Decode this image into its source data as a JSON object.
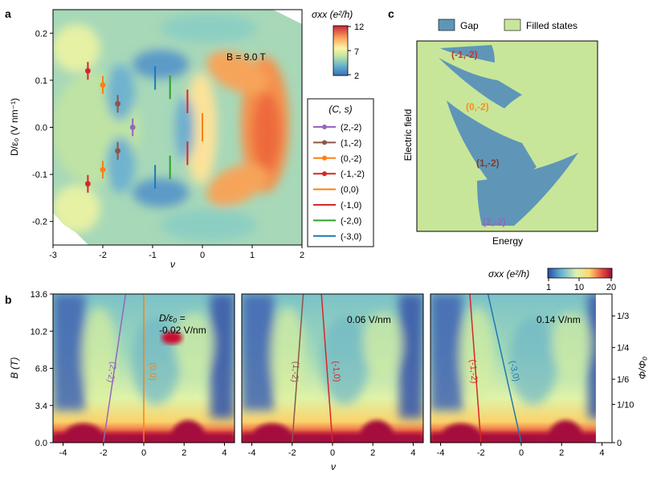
{
  "panels": {
    "a": "a",
    "b": "b",
    "c": "c"
  },
  "colors": {
    "gap": "#5f96b8",
    "filled": "#c8e69a",
    "s_2_m2": "#9467bd",
    "s_1_m2": "#8c564b",
    "s_0_m2": "#ff7f0e",
    "s_m1_m2": "#d62728",
    "s_0_0": "#ff7f0e",
    "s_m1_0": "#d62728",
    "s_m2_0": "#2ca02c",
    "s_m3_0": "#1f77b4"
  },
  "panel_a": {
    "annotation": "B = 9.0 T",
    "colorbar_label": "σxx (e²/h)",
    "colorbar_ticks": [
      "12",
      "7",
      "2"
    ],
    "legend_title": "(C, s)",
    "legend": [
      {
        "label": "(2,-2)",
        "marker": true,
        "color": "#9467bd"
      },
      {
        "label": "(1,-2)",
        "marker": true,
        "color": "#8c564b"
      },
      {
        "label": "(0,-2)",
        "marker": true,
        "color": "#ff7f0e"
      },
      {
        "label": "(-1,-2)",
        "marker": true,
        "color": "#d62728"
      },
      {
        "label": "(0,0)",
        "marker": false,
        "color": "#ff7f0e"
      },
      {
        "label": "(-1,0)",
        "marker": false,
        "color": "#d62728"
      },
      {
        "label": "(-2,0)",
        "marker": false,
        "color": "#2ca02c"
      },
      {
        "label": "(-3,0)",
        "marker": false,
        "color": "#1f77b4"
      }
    ]
  },
  "panel_c": {
    "legend_gap": "Gap",
    "legend_filled": "Filled states",
    "xlabel": "Energy",
    "ylabel": "Electric field",
    "labels": [
      {
        "text": "(-1,-2)",
        "color": "#c0392b"
      },
      {
        "text": "(0,-2)",
        "color": "#ff8c1a"
      },
      {
        "text": "(1,-2)",
        "color": "#7b3f2e"
      },
      {
        "text": "(2,-2)",
        "color": "#9467bd"
      }
    ]
  },
  "panel_b": {
    "colorbar_label": "σxx (e²/h)",
    "colorbar_ticks": [
      "1",
      "10",
      "20"
    ],
    "annotations": [
      "D/ε₀ =",
      "-0.02 V/nm",
      "0.06 V/nm",
      "0.14 V/nm"
    ],
    "line_labels": [
      {
        "text": "(2,-2)",
        "color": "#9467bd"
      },
      {
        "text": "(0,0)",
        "color": "#ff7f0e"
      },
      {
        "text": "(1,-2)",
        "color": "#8c564b"
      },
      {
        "text": "(-1,0)",
        "color": "#d62728"
      },
      {
        "text": "(-1,-2)",
        "color": "#d62728"
      },
      {
        "text": "(-3,0)",
        "color": "#1f77b4"
      }
    ],
    "right_axis_label": "Φ/Φ₀",
    "right_ticks": [
      "1/3",
      "1/4",
      "1/6",
      "1/10",
      "0"
    ]
  },
  "chart_data": [
    {
      "type": "heatmap",
      "xlabel": "ν",
      "ylabel": "D/ε₀ (V nm⁻¹)",
      "xlim": [
        -3,
        2
      ],
      "ylim": [
        -0.25,
        0.25
      ],
      "x_ticks": [
        "-3",
        "-2",
        "-1",
        "0",
        "1",
        "2"
      ],
      "y_ticks": [
        "0.2",
        "0.1",
        "0.0",
        "-0.1",
        "-0.2"
      ],
      "annotation": "B = 9.0 T",
      "colorbar": {
        "label": "σxx (e²/h)",
        "min": 2,
        "max": 12,
        "ticks": [
          2,
          7,
          12
        ]
      },
      "series": [
        {
          "name": "(2,-2)",
          "marker": "point",
          "points": [
            [
              -1.4,
              0.0
            ]
          ]
        },
        {
          "name": "(1,-2)",
          "marker": "point",
          "points": [
            [
              -1.7,
              0.05
            ],
            [
              -1.7,
              -0.05
            ]
          ]
        },
        {
          "name": "(0,-2)",
          "marker": "point",
          "points": [
            [
              -2.0,
              0.09
            ],
            [
              -2.0,
              -0.09
            ]
          ]
        },
        {
          "name": "(-1,-2)",
          "marker": "point",
          "points": [
            [
              -2.3,
              0.12
            ],
            [
              -2.3,
              -0.12
            ]
          ]
        },
        {
          "name": "(0,0)",
          "marker": "segment",
          "x": 0.0,
          "y_ranges": [
            [
              -0.03,
              0.03
            ]
          ]
        },
        {
          "name": "(-1,0)",
          "marker": "segment",
          "x": -0.3,
          "y_ranges": [
            [
              0.03,
              0.08
            ],
            [
              -0.08,
              -0.03
            ]
          ]
        },
        {
          "name": "(-2,0)",
          "marker": "segment",
          "x": -0.65,
          "y_ranges": [
            [
              0.06,
              0.11
            ],
            [
              -0.11,
              -0.06
            ]
          ]
        },
        {
          "name": "(-3,0)",
          "marker": "segment",
          "x": -0.95,
          "y_ranges": [
            [
              0.08,
              0.13
            ],
            [
              -0.13,
              -0.08
            ]
          ]
        }
      ]
    },
    {
      "type": "heatmap",
      "xlabel": "ν",
      "ylabel": "B (T)",
      "xlim": [
        -4.5,
        4.5
      ],
      "ylim": [
        0,
        13.6
      ],
      "x_ticks": [
        "-4",
        "-2",
        "0",
        "2",
        "4"
      ],
      "y_ticks": [
        "13.6",
        "10.2",
        "6.8",
        "3.4",
        "0.0"
      ],
      "annotation": "D/ε₀ = -0.02 V/nm",
      "colorbar": {
        "label": "σxx (e²/h)",
        "min": 1,
        "max": 20,
        "ticks": [
          1,
          10,
          20
        ]
      },
      "series": [
        {
          "name": "(2,-2)",
          "x": [
            -2.0,
            -0.9
          ],
          "y": [
            0,
            13.6
          ]
        },
        {
          "name": "(0,0)",
          "x": [
            0.0,
            0.0
          ],
          "y": [
            0,
            13.6
          ]
        }
      ]
    },
    {
      "type": "heatmap",
      "xlabel": "ν",
      "xlim": [
        -4.5,
        4.5
      ],
      "ylim": [
        0,
        13.6
      ],
      "x_ticks": [
        "-4",
        "-2",
        "0",
        "2",
        "4"
      ],
      "annotation": "0.06 V/nm",
      "series": [
        {
          "name": "(1,-2)",
          "x": [
            -2.0,
            -1.45
          ],
          "y": [
            0,
            13.6
          ]
        },
        {
          "name": "(-1,0)",
          "x": [
            0.0,
            -0.55
          ],
          "y": [
            0,
            13.6
          ]
        }
      ]
    },
    {
      "type": "heatmap",
      "xlabel": "ν",
      "xlim": [
        -4.5,
        4.5
      ],
      "ylim": [
        0,
        13.6
      ],
      "x_ticks": [
        "-4",
        "-2",
        "0",
        "2",
        "4"
      ],
      "annotation": "0.14 V/nm",
      "right_axis": {
        "label": "Φ/Φ₀",
        "ticks": [
          "1/3",
          "1/4",
          "1/6",
          "1/10",
          "0"
        ]
      },
      "series": [
        {
          "name": "(-1,-2)",
          "x": [
            -2.0,
            -2.55
          ],
          "y": [
            0,
            13.6
          ]
        },
        {
          "name": "(-3,0)",
          "x": [
            0.0,
            -1.65
          ],
          "y": [
            0,
            13.6
          ]
        }
      ]
    }
  ]
}
